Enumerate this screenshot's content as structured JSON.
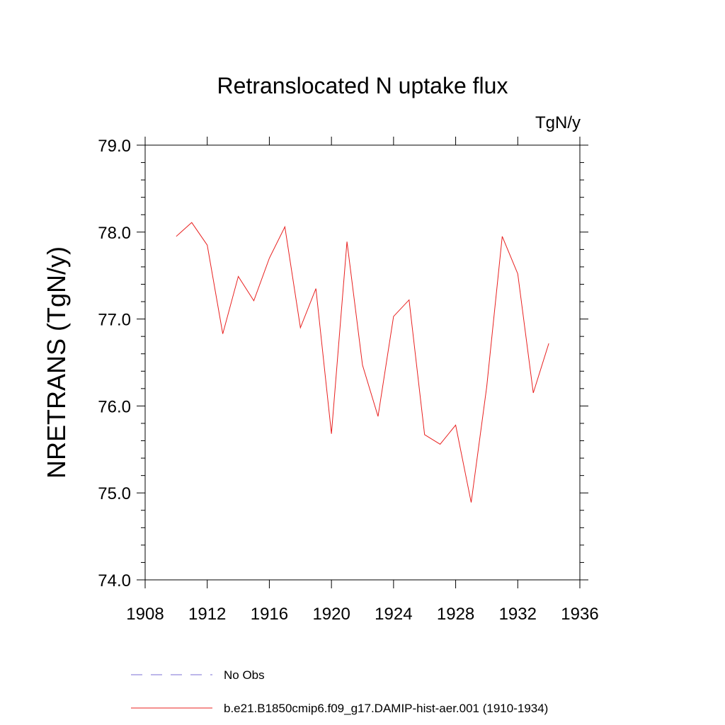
{
  "chart_data": {
    "type": "line",
    "title": "Retranslocated N uptake flux",
    "units_label": "TgN/y",
    "ylabel": "NRETRANS  (TgN/y)",
    "xlabel": "",
    "xlim": [
      1908,
      1936
    ],
    "ylim": [
      74.0,
      79.0
    ],
    "x_ticks": [
      1908,
      1912,
      1916,
      1920,
      1924,
      1928,
      1932,
      1936
    ],
    "y_ticks": [
      "74.0",
      "75.0",
      "76.0",
      "77.0",
      "78.0",
      "79.0"
    ],
    "grid": false,
    "legend_position": "bottom",
    "series": [
      {
        "name": "No Obs",
        "color": "#7b6fd6",
        "style": "dashed",
        "x": [],
        "y": []
      },
      {
        "name": "b.e21.B1850cmip6.f09_g17.DAMIP-hist-aer.001 (1910-1934)",
        "color": "#e8201f",
        "style": "solid",
        "x": [
          1910,
          1911,
          1912,
          1913,
          1914,
          1915,
          1916,
          1917,
          1918,
          1919,
          1920,
          1921,
          1922,
          1923,
          1924,
          1925,
          1926,
          1927,
          1928,
          1929,
          1930,
          1931,
          1932,
          1933,
          1934
        ],
        "y": [
          77.95,
          78.11,
          77.85,
          76.83,
          77.49,
          77.21,
          77.7,
          78.06,
          76.9,
          77.35,
          75.68,
          77.89,
          76.47,
          75.88,
          77.03,
          77.22,
          75.67,
          75.56,
          75.78,
          74.89,
          76.22,
          77.95,
          77.52,
          76.15,
          76.72
        ]
      }
    ]
  }
}
